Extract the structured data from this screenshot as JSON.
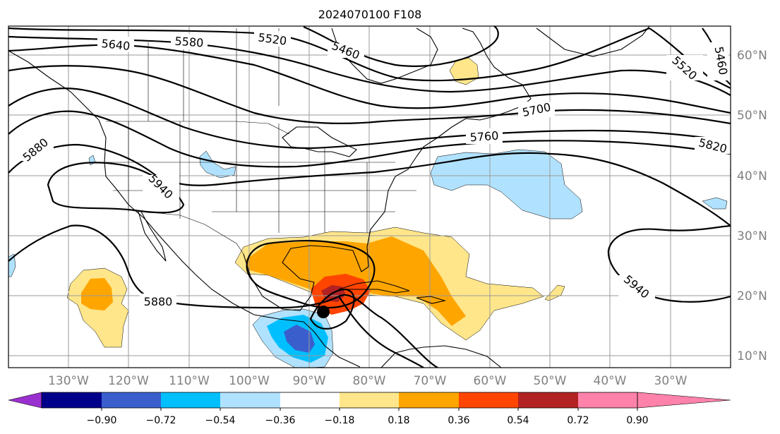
{
  "title": "2024070100 F108",
  "lat_labels": [
    "60°N",
    "50°N",
    "40°N",
    "30°N",
    "20°N",
    "10°N"
  ],
  "lon_labels": [
    "130°W",
    "120°W",
    "110°W",
    "100°W",
    "90°W",
    "80°W",
    "70°W",
    "60°W",
    "50°W",
    "40°W",
    "30°W"
  ],
  "contour_labels": [
    {
      "id": "5640",
      "text": "5640"
    },
    {
      "id": "5580",
      "text": "5580"
    },
    {
      "id": "5520a",
      "text": "5520"
    },
    {
      "id": "5460a",
      "text": "5460"
    },
    {
      "id": "5460b",
      "text": "5460"
    },
    {
      "id": "5520b",
      "text": "5520"
    },
    {
      "id": "5700",
      "text": "5700"
    },
    {
      "id": "5760",
      "text": "5760"
    },
    {
      "id": "5820",
      "text": "5820"
    },
    {
      "id": "5880a",
      "text": "5880"
    },
    {
      "id": "5940a",
      "text": "5940"
    },
    {
      "id": "5880b",
      "text": "5880"
    },
    {
      "id": "5940b",
      "text": "5940"
    }
  ],
  "colorbar": {
    "tick_labels": [
      "−0.90",
      "−0.72",
      "−0.54",
      "−0.36",
      "−0.18",
      "0.18",
      "0.36",
      "0.54",
      "0.72",
      "0.90"
    ],
    "colors": [
      "#9b30d0",
      "#00008b",
      "#3a5fcd",
      "#00bfff",
      "#b0e2ff",
      "#ffffff",
      "#ffe68a",
      "#ffa500",
      "#ff4500",
      "#b22222",
      "#ff82ab"
    ]
  },
  "storm_marker": {
    "lon": -87,
    "lat": 17.5
  }
}
